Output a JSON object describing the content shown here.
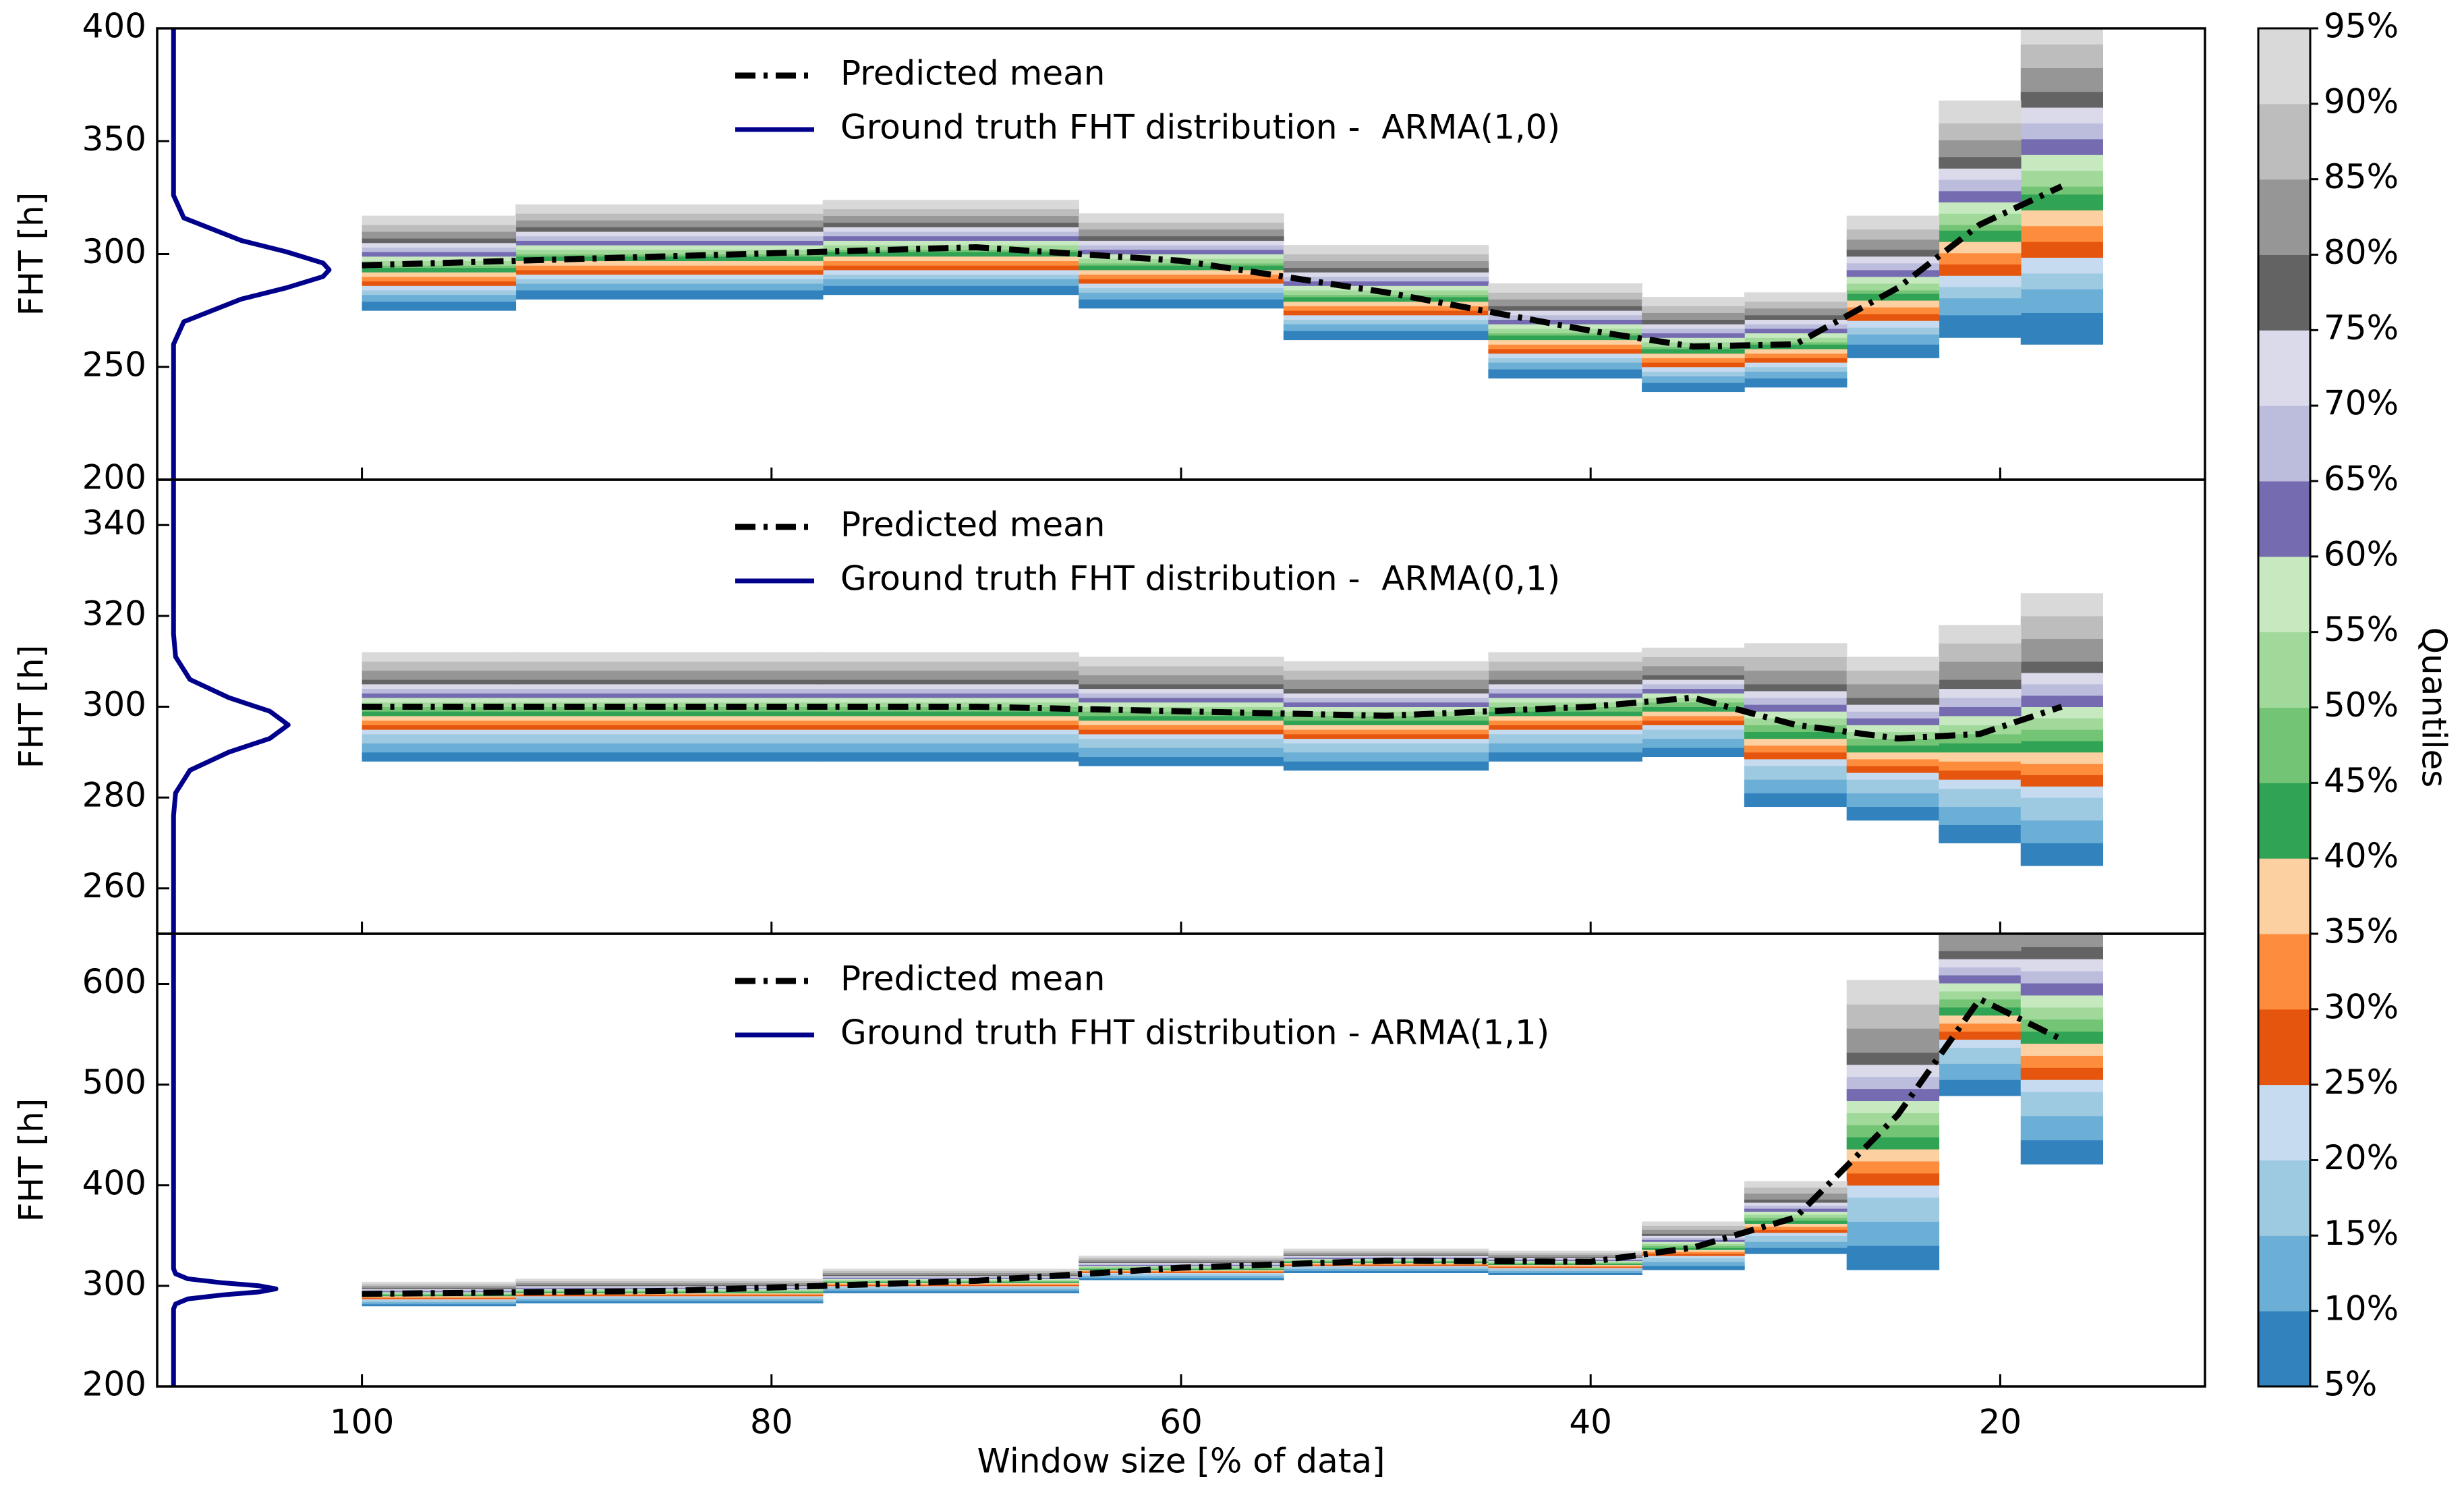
{
  "chart_data": [
    {
      "type": "quantile-steps",
      "ylabel": "FHT [h]",
      "xlim": [
        110,
        10
      ],
      "xticks": [
        100,
        80,
        60,
        40,
        20
      ],
      "ylim": [
        200,
        400
      ],
      "yticks": [
        200,
        250,
        300,
        350,
        400
      ],
      "x": [
        100,
        85,
        70,
        60,
        50,
        40,
        35,
        30,
        25,
        21,
        17
      ],
      "quantiles": [
        [
          275,
          280,
          282,
          276,
          262,
          245,
          239,
          241,
          254,
          263,
          260
        ],
        [
          279,
          284,
          286,
          280,
          266,
          249,
          243,
          245,
          260,
          273,
          274
        ],
        [
          282,
          287,
          289,
          283,
          269,
          252,
          246,
          248,
          264.5,
          280.5,
          284.5
        ],
        [
          284,
          289,
          291,
          285,
          271,
          254,
          248,
          250,
          267.5,
          285.5,
          291.5
        ],
        [
          286,
          291,
          293,
          287,
          273,
          256,
          250,
          252,
          270.5,
          290.5,
          298.5
        ],
        [
          288,
          293,
          295,
          289,
          275,
          258,
          252,
          254,
          273.5,
          295.5,
          305.5
        ],
        [
          290,
          295,
          297,
          291,
          277,
          260,
          254,
          256,
          276.5,
          300.5,
          312.5
        ],
        [
          292,
          297,
          299,
          293,
          279,
          262,
          256,
          258,
          279.5,
          305.5,
          319.5
        ],
        [
          294,
          299,
          301,
          295,
          281,
          264,
          258,
          260,
          282.5,
          310.5,
          326.5
        ],
        [
          295,
          300,
          302,
          296,
          282,
          265,
          259,
          261,
          284,
          313,
          330
        ],
        [
          297,
          302,
          304,
          298,
          284,
          267,
          261,
          263,
          287,
          318,
          337
        ],
        [
          299,
          304,
          306,
          300,
          286,
          269,
          263,
          265,
          290,
          323,
          344
        ],
        [
          301,
          306,
          308,
          302,
          288,
          271,
          265,
          267,
          293,
          328,
          351
        ],
        [
          303,
          308,
          310,
          304,
          290,
          273,
          267,
          269,
          296,
          333,
          358
        ],
        [
          305,
          310,
          312,
          306,
          292,
          275,
          269,
          271,
          299,
          338,
          365
        ],
        [
          307,
          312,
          314,
          308,
          294,
          277,
          271,
          273,
          302,
          343,
          372
        ],
        [
          310,
          315,
          317,
          311,
          297,
          280,
          274,
          276,
          306.5,
          350.5,
          382.5
        ],
        [
          313,
          318,
          320,
          314,
          300,
          283,
          277,
          279,
          311,
          358,
          393
        ],
        [
          317,
          322,
          324,
          318,
          304,
          287,
          281,
          283,
          317,
          368,
          407
        ]
      ],
      "series": [
        {
          "name": "Predicted mean",
          "color": "#000000",
          "values": [
            295,
            299,
            303,
            297,
            283,
            266,
            259,
            260,
            285,
            313,
            330
          ]
        },
        {
          "name": "Ground truth FHT distribution -  ARMA(1,0)",
          "color": "#00008b",
          "y": [
            200,
            260,
            270,
            280,
            285,
            290,
            293,
            296,
            301,
            306,
            316,
            326,
            400
          ],
          "x": [
            109.2,
            109.2,
            108.7,
            105.9,
            103.7,
            101.9,
            101.6,
            101.9,
            103.7,
            105.9,
            108.7,
            109.2,
            109.2
          ]
        }
      ]
    },
    {
      "type": "quantile-steps",
      "ylabel": "FHT [h]",
      "xlim": [
        110,
        10
      ],
      "xticks": [
        100,
        80,
        60,
        40,
        20
      ],
      "ylim": [
        250,
        350
      ],
      "yticks": [
        260,
        280,
        300,
        320,
        340
      ],
      "x": [
        100,
        85,
        70,
        60,
        50,
        40,
        35,
        30,
        25,
        21,
        17
      ],
      "quantiles": [
        [
          288,
          288,
          288,
          287,
          286,
          288,
          289,
          278,
          275,
          270,
          265
        ],
        [
          290,
          290,
          290,
          289,
          288,
          290,
          291,
          281,
          278,
          274,
          270
        ],
        [
          292,
          292,
          292,
          291,
          290,
          292,
          293,
          284,
          281,
          278,
          275
        ],
        [
          294,
          294,
          294,
          293,
          292,
          294,
          295,
          287,
          284,
          282,
          280
        ],
        [
          295,
          295,
          295,
          294,
          293,
          295,
          296,
          288.5,
          285.5,
          284,
          282.5
        ],
        [
          296,
          296,
          296,
          295,
          294,
          296,
          297,
          290,
          287,
          286,
          285
        ],
        [
          297,
          297,
          297,
          296,
          295,
          297,
          298,
          291.5,
          288.5,
          288,
          287.5
        ],
        [
          298,
          298,
          298,
          297,
          296,
          298,
          299,
          293,
          290,
          290,
          290
        ],
        [
          299,
          299,
          299,
          298,
          297,
          299,
          300,
          294.5,
          291.5,
          292,
          292.5
        ],
        [
          300,
          300,
          300,
          299,
          298,
          300,
          301,
          296,
          293,
          294,
          295
        ],
        [
          301,
          301,
          301,
          300,
          299,
          301,
          302,
          297.5,
          294.5,
          296,
          297.5
        ],
        [
          302,
          302,
          302,
          301,
          300,
          302,
          303,
          299,
          296,
          298,
          300
        ],
        [
          303,
          303,
          303,
          302,
          301,
          303,
          304,
          300.5,
          297.5,
          300,
          302.5
        ],
        [
          304,
          304,
          304,
          303,
          302,
          304,
          305,
          302,
          299,
          302,
          305
        ],
        [
          305,
          305,
          305,
          304,
          303,
          305,
          306,
          303.5,
          300.5,
          304,
          307.5
        ],
        [
          306,
          306,
          306,
          305,
          304,
          306,
          307,
          305,
          302,
          306,
          310
        ],
        [
          308,
          308,
          308,
          307,
          306,
          308,
          309,
          308,
          305,
          310,
          315
        ],
        [
          310,
          310,
          310,
          309,
          308,
          310,
          311,
          311,
          308,
          314,
          320
        ],
        [
          312,
          312,
          312,
          311,
          310,
          312,
          313,
          314,
          311,
          318,
          325
        ]
      ],
      "series": [
        {
          "name": "Predicted mean",
          "color": "#000000",
          "values": [
            300,
            300,
            300,
            299,
            298,
            300,
            302,
            296,
            293,
            294,
            300
          ]
        },
        {
          "name": "Ground truth FHT distribution -  ARMA(0,1)",
          "color": "#00008b",
          "y": [
            250,
            276,
            281,
            286,
            290,
            293,
            296,
            299,
            302,
            306,
            311,
            316,
            350
          ],
          "x": [
            109.2,
            109.2,
            109.1,
            108.4,
            106.5,
            104.5,
            103.6,
            104.5,
            106.5,
            108.4,
            109.1,
            109.2,
            109.2
          ]
        }
      ]
    },
    {
      "type": "quantile-steps",
      "ylabel": "FHT [h]",
      "xlabel": "Window size [% of data]",
      "xlim": [
        110,
        10
      ],
      "xticks": [
        100,
        80,
        60,
        40,
        20
      ],
      "ylim": [
        200,
        650
      ],
      "yticks": [
        200,
        300,
        400,
        500,
        600
      ],
      "x": [
        100,
        85,
        70,
        60,
        50,
        40,
        35,
        30,
        25,
        21,
        17
      ],
      "quantiles": [
        [
          280,
          283,
          293,
          306,
          313,
          311,
          316,
          332,
          316,
          489,
          421
        ],
        [
          282,
          285,
          295,
          308,
          315,
          313,
          320,
          338,
          340,
          505,
          445
        ],
        [
          284,
          287,
          297,
          310,
          317,
          315,
          324,
          344,
          364,
          521,
          469
        ],
        [
          286,
          289,
          299,
          312,
          319,
          317,
          328,
          350,
          388,
          537,
          493
        ],
        [
          287,
          290,
          300,
          313,
          320,
          318,
          330,
          353,
          400,
          545,
          505
        ],
        [
          288,
          291,
          301,
          314,
          321,
          319,
          332,
          356,
          412,
          553,
          517
        ],
        [
          289,
          292,
          302,
          315,
          322,
          320,
          334,
          359,
          424,
          561,
          529
        ],
        [
          290,
          293,
          303,
          316,
          323,
          321,
          336,
          362,
          436,
          569,
          541
        ],
        [
          291,
          294,
          304,
          317,
          324,
          322,
          338,
          365,
          448,
          577,
          553
        ],
        [
          292,
          295,
          305,
          318,
          325,
          323,
          340,
          368,
          460,
          585,
          565
        ],
        [
          293,
          296,
          306,
          319,
          326,
          324,
          342,
          371,
          472,
          593,
          577
        ],
        [
          294,
          297,
          307,
          320,
          327,
          325,
          344,
          374,
          484,
          601,
          589
        ],
        [
          295,
          298,
          308,
          321,
          328,
          326,
          346,
          377,
          496,
          609,
          601
        ],
        [
          296,
          299,
          309,
          322,
          329,
          327,
          348,
          380,
          508,
          617,
          613
        ],
        [
          297,
          300,
          310,
          323,
          330,
          328,
          350,
          383,
          520,
          625,
          625
        ],
        [
          298,
          301,
          311,
          324,
          331,
          329,
          352,
          386,
          532,
          633,
          637
        ],
        [
          300,
          303,
          313,
          326,
          333,
          331,
          356,
          392,
          556,
          649,
          661
        ],
        [
          302,
          305,
          315,
          328,
          335,
          333,
          360,
          398,
          580,
          665,
          685
        ],
        [
          304,
          307,
          317,
          330,
          337,
          335,
          364,
          404,
          604,
          681,
          709
        ]
      ],
      "series": [
        {
          "name": "Predicted mean",
          "color": "#000000",
          "values": [
            292,
            295,
            305,
            318,
            325,
            324,
            338,
            368,
            470,
            585,
            545
          ]
        },
        {
          "name": "Ground truth FHT distribution - ARMA(1,1)",
          "color": "#00008b",
          "y": [
            200,
            277,
            282,
            287,
            291,
            294,
            297,
            300,
            303,
            307,
            312,
            317,
            650
          ],
          "x": [
            109.2,
            109.2,
            109.1,
            108.5,
            106.8,
            105.0,
            104.2,
            105.0,
            106.8,
            108.5,
            109.1,
            109.2,
            109.2
          ]
        }
      ]
    }
  ],
  "colorbar": {
    "label": "Quantiles",
    "lim": [
      5,
      95
    ],
    "colors": [
      "#3182bd",
      "#6baed6",
      "#9ecae1",
      "#c6dbef",
      "#e6550d",
      "#fd8d3c",
      "#fdd0a2",
      "#31a354",
      "#74c476",
      "#a1d99b",
      "#c7e9c0",
      "#756bb1",
      "#bcbddc",
      "#dadaeb",
      "#636363",
      "#969696",
      "#bdbdbd",
      "#d9d9d9"
    ],
    "ticks": [
      {
        "value": 5,
        "label": "5%"
      },
      {
        "value": 10,
        "label": "10%"
      },
      {
        "value": 15,
        "label": "15%"
      },
      {
        "value": 20,
        "label": "20%"
      },
      {
        "value": 25,
        "label": "25%"
      },
      {
        "value": 30,
        "label": "30%"
      },
      {
        "value": 35,
        "label": "35%"
      },
      {
        "value": 40,
        "label": "40%"
      },
      {
        "value": 45,
        "label": "45%"
      },
      {
        "value": 50,
        "label": "50%"
      },
      {
        "value": 55,
        "label": "55%"
      },
      {
        "value": 60,
        "label": "60%"
      },
      {
        "value": 65,
        "label": "65%"
      },
      {
        "value": 70,
        "label": "70%"
      },
      {
        "value": 75,
        "label": "75%"
      },
      {
        "value": 80,
        "label": "80%"
      },
      {
        "value": 85,
        "label": "85%"
      },
      {
        "value": 90,
        "label": "90%"
      },
      {
        "value": 95,
        "label": "95%"
      }
    ]
  }
}
